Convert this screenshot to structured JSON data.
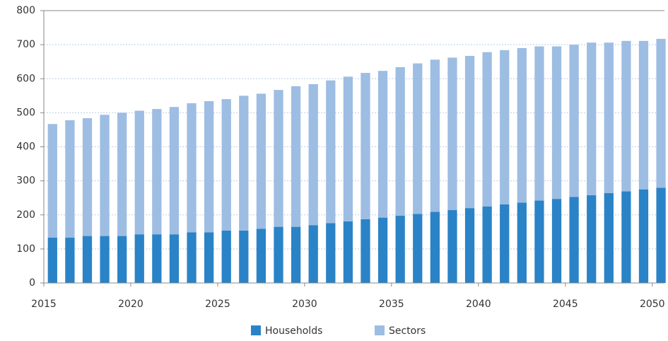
{
  "chart_data": {
    "type": "stacked_bar",
    "x": [
      2015,
      2016,
      2017,
      2018,
      2019,
      2020,
      2021,
      2022,
      2023,
      2024,
      2025,
      2026,
      2027,
      2028,
      2029,
      2030,
      2031,
      2032,
      2033,
      2034,
      2035,
      2036,
      2037,
      2038,
      2039,
      2040,
      2041,
      2042,
      2043,
      2044,
      2045,
      2046,
      2047,
      2048,
      2049,
      2050
    ],
    "series": [
      {
        "name": "Households",
        "color": "#2a83c6",
        "values": [
          133,
          133,
          138,
          138,
          138,
          143,
          143,
          143,
          149,
          149,
          154,
          154,
          159,
          165,
          165,
          170,
          176,
          181,
          187,
          192,
          198,
          203,
          209,
          214,
          220,
          225,
          231,
          236,
          242,
          247,
          253,
          258,
          264,
          269,
          275,
          280
        ]
      },
      {
        "name": "Sectors",
        "color": "#9dbde3",
        "values": [
          334,
          345,
          346,
          356,
          362,
          363,
          368,
          374,
          379,
          385,
          386,
          396,
          397,
          402,
          413,
          414,
          419,
          425,
          430,
          431,
          436,
          442,
          447,
          448,
          447,
          453,
          453,
          454,
          453,
          448,
          447,
          448,
          442,
          442,
          436,
          437
        ]
      }
    ],
    "xlim": [
      2015,
      2050.7
    ],
    "xticks": [
      2015,
      2020,
      2025,
      2030,
      2035,
      2040,
      2045,
      2050
    ],
    "ylim": [
      0,
      800
    ],
    "yticks": [
      0,
      100,
      200,
      300,
      400,
      500,
      600,
      700,
      800
    ],
    "grid": true
  }
}
